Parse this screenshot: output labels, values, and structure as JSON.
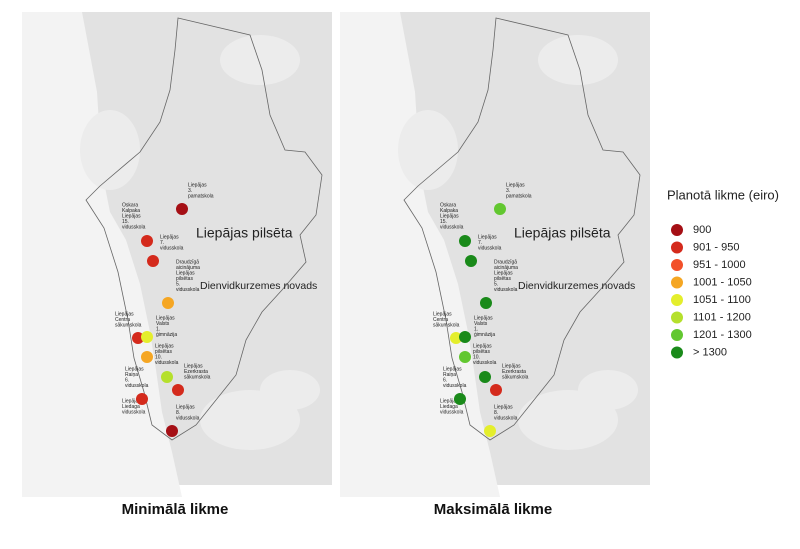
{
  "maps": [
    {
      "title": "Minimālā likme",
      "place_labels": [
        "Liepājas pilsēta",
        "Dienvidkurzemes novads"
      ],
      "schools": [
        {
          "label_lines": [
            "Liepājas",
            "3.",
            "pamatskola"
          ],
          "rate_class": 0
        },
        {
          "label_lines": [
            "Oskara",
            "Kalpaka",
            "Liepājas",
            "15.",
            "vidusskola"
          ],
          "rate_class": 1
        },
        {
          "label_lines": [
            "Liepājas",
            "7.",
            "vidusskola"
          ],
          "rate_class": 1
        },
        {
          "label_lines": [
            "Draudzīgā",
            "aicinājuma",
            "Liepājas",
            "pilsētas",
            "5.",
            "vidusskola"
          ],
          "rate_class": 3
        },
        {
          "label_lines": [
            "Liepājas",
            "Centra",
            "sākumskola"
          ],
          "rate_class": 1
        },
        {
          "label_lines": [
            "Liepājas",
            "Valsts",
            "1.",
            "ģimnāzija"
          ],
          "rate_class": 4
        },
        {
          "label_lines": [
            "Liepājas",
            "pilsētas",
            "10.",
            "vidusskola"
          ],
          "rate_class": 3
        },
        {
          "label_lines": [
            "Liepājas",
            "Raiņa",
            "6.",
            "vidusskola"
          ],
          "rate_class": 5
        },
        {
          "label_lines": [
            "Liepājas",
            "Ezerkrasta",
            "sākumskola"
          ],
          "rate_class": 1
        },
        {
          "label_lines": [
            "Liepājas",
            "Liedaga",
            "vidusskola"
          ],
          "rate_class": 1
        },
        {
          "label_lines": [
            "Liepājas",
            "8.",
            "vidusskola"
          ],
          "rate_class": 0
        }
      ]
    },
    {
      "title": "Maksimālā likme",
      "place_labels": [
        "Liepājas pilsēta",
        "Dienvidkurzemes novads"
      ],
      "schools": [
        {
          "label_lines": [
            "Liepājas",
            "3.",
            "pamatskola"
          ],
          "rate_class": 6
        },
        {
          "label_lines": [
            "Oskara",
            "Kalpaka",
            "Liepājas",
            "15.",
            "vidusskola"
          ],
          "rate_class": 7
        },
        {
          "label_lines": [
            "Liepājas",
            "7.",
            "vidusskola"
          ],
          "rate_class": 7
        },
        {
          "label_lines": [
            "Draudzīgā",
            "aicinājuma",
            "Liepājas",
            "pilsētas",
            "5.",
            "vidusskola"
          ],
          "rate_class": 7
        },
        {
          "label_lines": [
            "Liepājas",
            "Centra",
            "sākumskola"
          ],
          "rate_class": 4
        },
        {
          "label_lines": [
            "Liepājas",
            "Valsts",
            "1.",
            "ģimnāzija"
          ],
          "rate_class": 7
        },
        {
          "label_lines": [
            "Liepājas",
            "pilsētas",
            "10.",
            "vidusskola"
          ],
          "rate_class": 6
        },
        {
          "label_lines": [
            "Liepājas",
            "Raiņa",
            "6.",
            "vidusskola"
          ],
          "rate_class": 7
        },
        {
          "label_lines": [
            "Liepājas",
            "Ezerkrasta",
            "sākumskola"
          ],
          "rate_class": 1
        },
        {
          "label_lines": [
            "Liepājas",
            "Liedaga",
            "vidusskola"
          ],
          "rate_class": 7
        },
        {
          "label_lines": [
            "Liepājas",
            "8.",
            "vidusskola"
          ],
          "rate_class": 4
        }
      ]
    }
  ],
  "legend": {
    "title": "Planotā likme (eiro)",
    "items": [
      {
        "label": "900",
        "color": "#a50f15"
      },
      {
        "label": "901 - 950",
        "color": "#d42a1c"
      },
      {
        "label": "951 - 1000",
        "color": "#f2502a"
      },
      {
        "label": "1001 - 1050",
        "color": "#f5a623"
      },
      {
        "label": "1051 - 1100",
        "color": "#e4ee2c"
      },
      {
        "label": "1101 - 1200",
        "color": "#b5e02c"
      },
      {
        "label": "1201 - 1300",
        "color": "#62c730"
      },
      {
        "label": "> 1300",
        "color": "#1a8a1a"
      }
    ]
  }
}
